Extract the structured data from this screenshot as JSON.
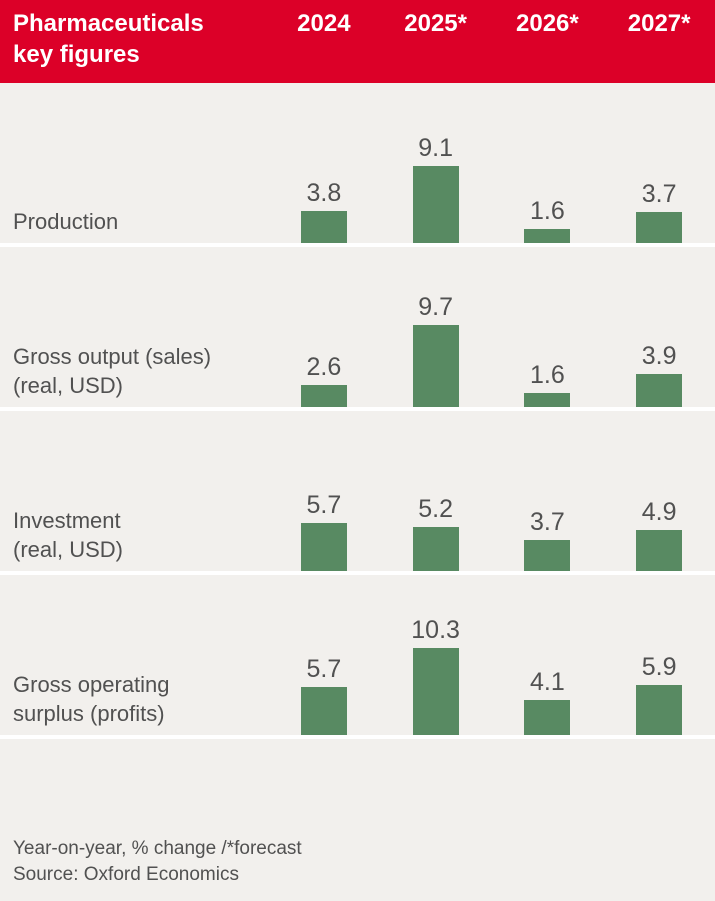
{
  "header": {
    "title": "Pharmaceuticals\nkey figures",
    "columns": [
      "2024",
      "2025*",
      "2026*",
      "2027*"
    ]
  },
  "chart_data": {
    "type": "bar",
    "categories": [
      "2024",
      "2025*",
      "2026*",
      "2027*"
    ],
    "series": [
      {
        "name": "Production",
        "values": [
          3.8,
          9.1,
          1.6,
          3.7
        ]
      },
      {
        "name": "Gross output (sales)\n(real, USD)",
        "values": [
          2.6,
          9.7,
          1.6,
          3.9
        ]
      },
      {
        "name": "Investment\n(real, USD)",
        "values": [
          5.7,
          5.2,
          3.7,
          4.9
        ]
      },
      {
        "name": "Gross operating\nsurplus (profits)",
        "values": [
          5.7,
          10.3,
          4.1,
          5.9
        ]
      }
    ],
    "title": "Pharmaceuticals key figures",
    "xlabel": "",
    "ylabel": "Year-on-year, % change",
    "ylim": [
      0,
      11
    ],
    "value_labels": "on",
    "grid": "off",
    "legend": "none"
  },
  "footer": {
    "note": "Year-on-year, % change /*forecast",
    "source": "Source: Oxford Economics"
  },
  "colors": {
    "header_bg": "#DC0028",
    "header_text": "#FFFFFF",
    "bar": "#588A62",
    "row_bg": "#F2F0ED",
    "separator": "#FFFFFF",
    "text": "#515151"
  }
}
